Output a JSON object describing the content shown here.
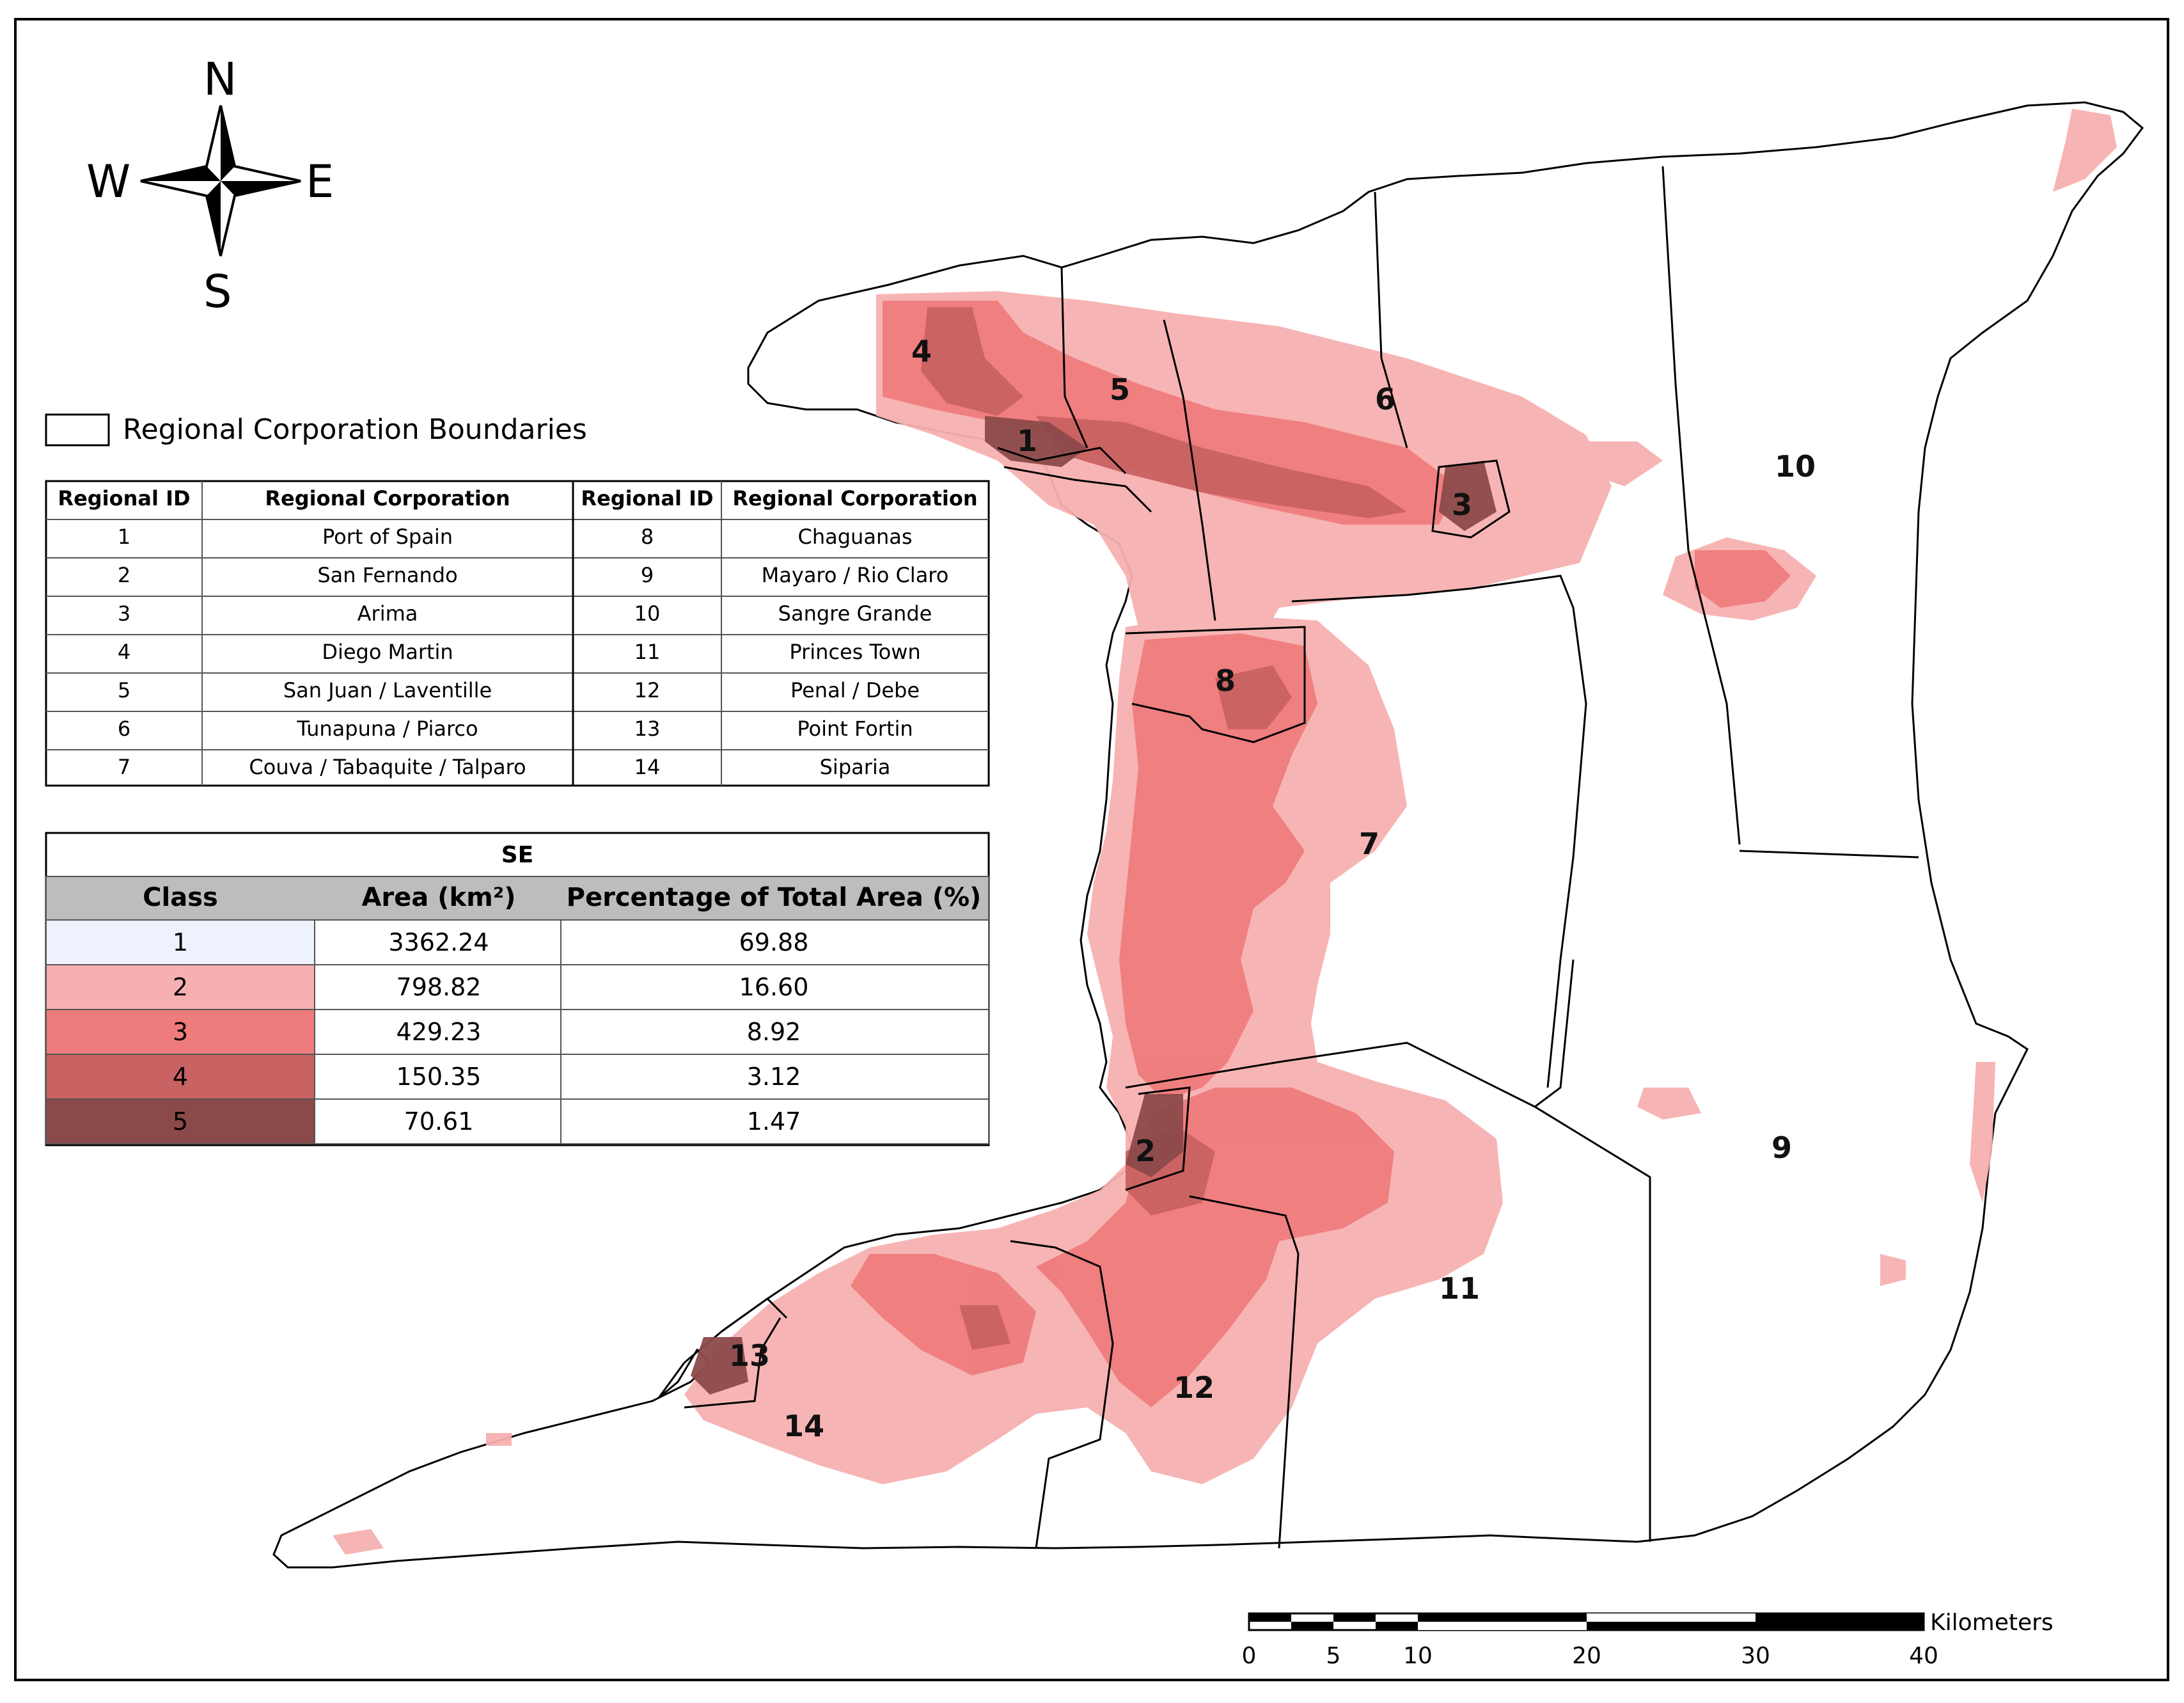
{
  "compass": {
    "north": "N",
    "south": "S",
    "east": "E",
    "west": "W"
  },
  "legend": {
    "boundary_label": "Regional Corporation Boundaries"
  },
  "region_table": {
    "headers": [
      "Regional ID",
      "Regional Corporation",
      "Regional ID",
      "Regional Corporation"
    ],
    "rows": [
      [
        "1",
        "Port of Spain",
        "8",
        "Chaguanas"
      ],
      [
        "2",
        "San Fernando",
        "9",
        "Mayaro / Rio Claro"
      ],
      [
        "3",
        "Arima",
        "10",
        "Sangre Grande"
      ],
      [
        "4",
        "Diego Martin",
        "11",
        "Princes Town"
      ],
      [
        "5",
        "San Juan / Laventille",
        "12",
        "Penal / Debe"
      ],
      [
        "6",
        "Tunapuna / Piarco",
        "13",
        "Point Fortin"
      ],
      [
        "7",
        "Couva / Tabaquite / Talparo",
        "14",
        "Siparia"
      ]
    ]
  },
  "class_table": {
    "title": "SE",
    "headers": [
      "Class",
      "Area (km²)",
      "Percentage of Total Area (%)"
    ],
    "rows": [
      {
        "class": "1",
        "area": "3362.24",
        "pct": "69.88",
        "color": "#eef2fd"
      },
      {
        "class": "2",
        "area": "798.82",
        "pct": "16.60",
        "color": "#f7b0b0"
      },
      {
        "class": "3",
        "area": "429.23",
        "pct": "8.92",
        "color": "#ef7c7c"
      },
      {
        "class": "4",
        "area": "150.35",
        "pct": "3.12",
        "color": "#c96262"
      },
      {
        "class": "5",
        "area": "70.61",
        "pct": "1.47",
        "color": "#8b4a4a"
      }
    ]
  },
  "region_labels": [
    "1",
    "2",
    "3",
    "4",
    "5",
    "6",
    "7",
    "8",
    "9",
    "10",
    "11",
    "12",
    "13",
    "14"
  ],
  "scale_bar": {
    "unit": "Kilometers",
    "ticks": [
      "0",
      "5",
      "10",
      "20",
      "30",
      "40"
    ]
  }
}
